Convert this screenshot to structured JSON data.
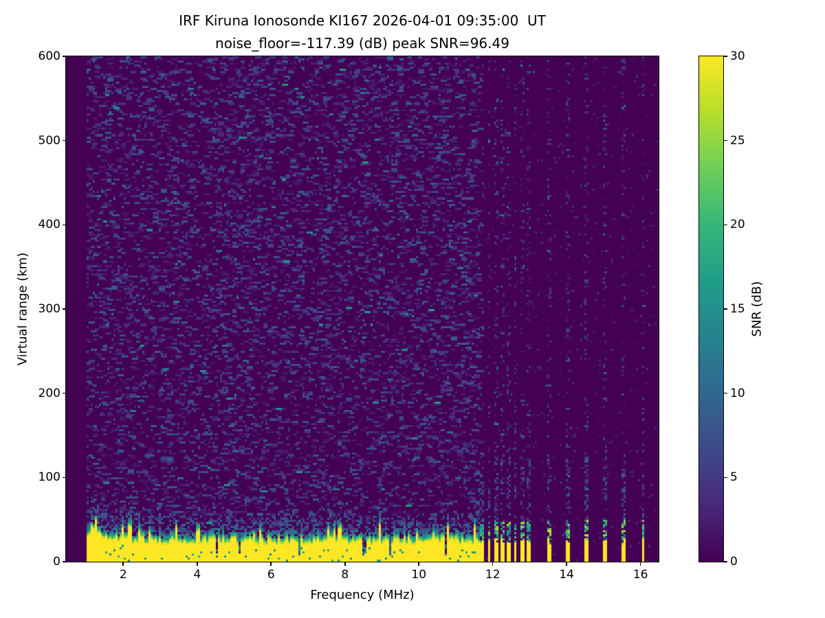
{
  "figure": {
    "background_color": "#ffffff",
    "text_color": "#000000"
  },
  "chart_data": {
    "type": "heatmap",
    "title": "IRF Kiruna Ionosonde KI167 2026-04-01 09:35:00  UT\nnoise_floor=-117.39 (dB) peak SNR=96.49",
    "title_line1": "IRF Kiruna Ionosonde KI167 2026-04-01 09:35:00  UT",
    "title_line2": "noise_floor=-117.39 (dB) peak SNR=96.49",
    "station": "IRF Kiruna Ionosonde KI167",
    "timestamp_ut": "2026-04-01 09:35:00",
    "noise_floor_db": -117.39,
    "peak_snr_db": 96.49,
    "xlabel": "Frequency (MHz)",
    "ylabel": "Virtual range (km)",
    "colorbar_label": "SNR (dB)",
    "xlim": [
      0.45,
      16.49
    ],
    "ylim": [
      0,
      600
    ],
    "clim": [
      0,
      30
    ],
    "xticks": [
      2,
      4,
      6,
      8,
      10,
      12,
      14,
      16
    ],
    "yticks": [
      0,
      100,
      200,
      300,
      400,
      500,
      600
    ],
    "colorbar_ticks": [
      0,
      5,
      10,
      15,
      20,
      25,
      30
    ],
    "grid": false,
    "colormap": "viridis",
    "colormap_stops": [
      "#440154",
      "#482878",
      "#3e4a89",
      "#31688e",
      "#26828e",
      "#1f9e89",
      "#35b779",
      "#6ece58",
      "#b5de2b",
      "#fde725"
    ],
    "features": {
      "no_data_below_mhz": 1.0,
      "continuous_sweep_end_mhz": 11.67,
      "ground_echo_band_top_km": 30,
      "ground_echo_snr_db": 30,
      "echo_transition_km": [
        28,
        50
      ],
      "background_noise_db_range": [
        0,
        9
      ],
      "discrete_stripe_freqs_mhz": [
        11.72,
        11.9,
        12.08,
        12.26,
        12.44,
        12.62,
        12.8,
        12.98,
        13.52,
        14.02,
        14.53,
        15.02,
        15.55,
        16.07
      ],
      "stripe_halfwidth_mhz": 0.05,
      "stripe_echo_top_km": 25
    },
    "render": {
      "seed": 167,
      "grid_cols": 288,
      "grid_rows": 240
    }
  }
}
